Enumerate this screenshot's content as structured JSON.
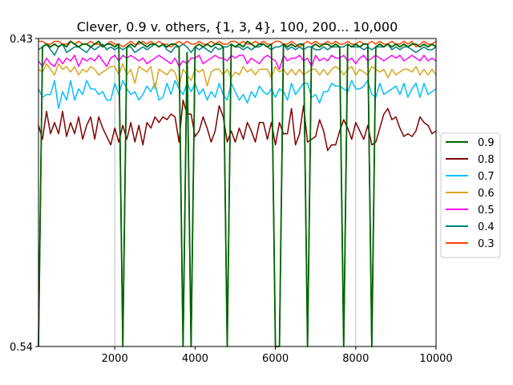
{
  "chart_data": {
    "type": "line",
    "title": "Clever, 0.9 v. others, {1, 3, 4}, 100, 200... 10,000",
    "xlabel": "",
    "ylabel": "",
    "xlim": [
      100,
      10000
    ],
    "ylim": [
      0.54,
      0.43
    ],
    "y_inverted": true,
    "x_ticks": [
      2000,
      4000,
      6000,
      8000,
      10000
    ],
    "x_tick_labels": [
      "2000",
      "4000",
      "6000",
      "8000",
      "10000"
    ],
    "y_tick_labels": [
      "0.43",
      "0.54"
    ],
    "x_gridlines": [
      2000,
      8000
    ],
    "legend_placement": "right-outside",
    "x": [
      100,
      200,
      300,
      400,
      500,
      600,
      700,
      800,
      900,
      1000,
      1100,
      1200,
      1300,
      1400,
      1500,
      1600,
      1700,
      1800,
      1900,
      2000,
      2100,
      2200,
      2300,
      2400,
      2500,
      2600,
      2700,
      2800,
      2900,
      3000,
      3100,
      3200,
      3300,
      3400,
      3500,
      3600,
      3700,
      3800,
      3900,
      4000,
      4100,
      4200,
      4300,
      4400,
      4500,
      4600,
      4700,
      4800,
      4900,
      5000,
      5100,
      5200,
      5300,
      5400,
      5500,
      5600,
      5700,
      5800,
      5900,
      6000,
      6100,
      6200,
      6300,
      6400,
      6500,
      6600,
      6700,
      6800,
      6900,
      7000,
      7100,
      7200,
      7300,
      7400,
      7500,
      7600,
      7700,
      7800,
      7900,
      8000,
      8100,
      8200,
      8300,
      8400,
      8500,
      8600,
      8700,
      8800,
      8900,
      9000,
      9100,
      9200,
      9300,
      9400,
      9500,
      9600,
      9700,
      9800,
      9900,
      10000
    ],
    "series": [
      {
        "name": "0.9",
        "color": "#006400",
        "values": [
          0.54,
          0.433,
          0.432,
          0.433,
          0.432,
          0.433,
          0.432,
          0.433,
          0.431,
          0.432,
          0.433,
          0.432,
          0.432,
          0.433,
          0.432,
          0.431,
          0.433,
          0.432,
          0.432,
          0.433,
          0.432,
          0.54,
          0.433,
          0.432,
          0.433,
          0.431,
          0.432,
          0.433,
          0.432,
          0.432,
          0.433,
          0.432,
          0.433,
          0.432,
          0.432,
          0.433,
          0.54,
          0.435,
          0.54,
          0.433,
          0.432,
          0.433,
          0.432,
          0.433,
          0.432,
          0.432,
          0.433,
          0.54,
          0.432,
          0.433,
          0.432,
          0.433,
          0.431,
          0.432,
          0.433,
          0.432,
          0.432,
          0.433,
          0.432,
          0.54,
          0.54,
          0.432,
          0.433,
          0.432,
          0.433,
          0.432,
          0.432,
          0.54,
          0.433,
          0.432,
          0.433,
          0.432,
          0.432,
          0.433,
          0.432,
          0.433,
          0.54,
          0.432,
          0.433,
          0.432,
          0.433,
          0.432,
          0.432,
          0.54,
          0.433,
          0.432,
          0.433,
          0.432,
          0.433,
          0.432,
          0.433,
          0.432,
          0.433,
          0.432,
          0.432,
          0.433,
          0.432,
          0.433,
          0.432,
          0.433
        ]
      },
      {
        "name": "0.8",
        "color": "#800000",
        "values": [
          0.461,
          0.466,
          0.456,
          0.464,
          0.46,
          0.464,
          0.456,
          0.465,
          0.46,
          0.464,
          0.458,
          0.466,
          0.461,
          0.458,
          0.466,
          0.458,
          0.462,
          0.465,
          0.468,
          0.462,
          0.467,
          0.461,
          0.466,
          0.46,
          0.467,
          0.461,
          0.468,
          0.46,
          0.462,
          0.458,
          0.46,
          0.458,
          0.459,
          0.457,
          0.458,
          0.467,
          0.452,
          0.457,
          0.457,
          0.465,
          0.463,
          0.458,
          0.462,
          0.467,
          0.463,
          0.454,
          0.458,
          0.467,
          0.463,
          0.467,
          0.462,
          0.466,
          0.46,
          0.463,
          0.467,
          0.46,
          0.46,
          0.466,
          0.46,
          0.468,
          0.46,
          0.464,
          0.464,
          0.455,
          0.468,
          0.464,
          0.454,
          0.467,
          0.466,
          0.465,
          0.459,
          0.463,
          0.47,
          0.468,
          0.468,
          0.463,
          0.459,
          0.462,
          0.466,
          0.46,
          0.463,
          0.466,
          0.461,
          0.468,
          0.467,
          0.462,
          0.457,
          0.455,
          0.459,
          0.458,
          0.462,
          0.465,
          0.464,
          0.465,
          0.463,
          0.458,
          0.46,
          0.461,
          0.464,
          0.463
        ]
      },
      {
        "name": "0.7",
        "color": "#00bfff",
        "values": [
          0.448,
          0.451,
          0.45,
          0.45,
          0.445,
          0.455,
          0.449,
          0.452,
          0.445,
          0.452,
          0.448,
          0.45,
          0.445,
          0.448,
          0.448,
          0.45,
          0.449,
          0.452,
          0.452,
          0.446,
          0.45,
          0.445,
          0.448,
          0.45,
          0.449,
          0.452,
          0.45,
          0.447,
          0.449,
          0.446,
          0.452,
          0.451,
          0.446,
          0.45,
          0.445,
          0.448,
          0.45,
          0.446,
          0.449,
          0.446,
          0.45,
          0.448,
          0.452,
          0.449,
          0.451,
          0.446,
          0.45,
          0.452,
          0.446,
          0.449,
          0.452,
          0.45,
          0.453,
          0.449,
          0.451,
          0.447,
          0.449,
          0.45,
          0.448,
          0.451,
          0.448,
          0.449,
          0.452,
          0.446,
          0.45,
          0.448,
          0.446,
          0.446,
          0.451,
          0.45,
          0.453,
          0.449,
          0.449,
          0.446,
          0.447,
          0.447,
          0.448,
          0.449,
          0.445,
          0.448,
          0.448,
          0.447,
          0.445,
          0.45,
          0.451,
          0.446,
          0.45,
          0.449,
          0.448,
          0.447,
          0.45,
          0.446,
          0.451,
          0.448,
          0.446,
          0.451,
          0.446,
          0.45,
          0.449,
          0.448
        ]
      },
      {
        "name": "0.6",
        "color": "#daa520",
        "values": [
          0.441,
          0.442,
          0.439,
          0.441,
          0.443,
          0.439,
          0.441,
          0.44,
          0.442,
          0.44,
          0.443,
          0.441,
          0.442,
          0.44,
          0.441,
          0.443,
          0.442,
          0.441,
          0.44,
          0.44,
          0.443,
          0.439,
          0.443,
          0.441,
          0.446,
          0.44,
          0.441,
          0.442,
          0.44,
          0.448,
          0.441,
          0.442,
          0.443,
          0.441,
          0.442,
          0.447,
          0.441,
          0.443,
          0.445,
          0.441,
          0.442,
          0.441,
          0.447,
          0.442,
          0.441,
          0.441,
          0.443,
          0.441,
          0.444,
          0.442,
          0.443,
          0.44,
          0.442,
          0.441,
          0.443,
          0.441,
          0.441,
          0.441,
          0.444,
          0.44,
          0.442,
          0.441,
          0.443,
          0.441,
          0.443,
          0.441,
          0.443,
          0.442,
          0.441,
          0.441,
          0.443,
          0.441,
          0.443,
          0.441,
          0.44,
          0.441,
          0.443,
          0.441,
          0.44,
          0.443,
          0.441,
          0.442,
          0.443,
          0.44,
          0.441,
          0.442,
          0.441,
          0.444,
          0.441,
          0.443,
          0.442,
          0.441,
          0.441,
          0.442,
          0.44,
          0.443,
          0.441,
          0.443,
          0.441,
          0.443
        ]
      },
      {
        "name": "0.5",
        "color": "#ff00ff",
        "values": [
          0.438,
          0.44,
          0.437,
          0.439,
          0.44,
          0.437,
          0.439,
          0.437,
          0.438,
          0.436,
          0.44,
          0.437,
          0.438,
          0.437,
          0.438,
          0.436,
          0.438,
          0.44,
          0.437,
          0.436,
          0.438,
          0.436,
          0.437,
          0.436,
          0.437,
          0.438,
          0.437,
          0.439,
          0.438,
          0.437,
          0.436,
          0.437,
          0.438,
          0.439,
          0.437,
          0.44,
          0.438,
          0.439,
          0.437,
          0.437,
          0.436,
          0.439,
          0.438,
          0.437,
          0.436,
          0.437,
          0.437,
          0.438,
          0.436,
          0.437,
          0.436,
          0.436,
          0.439,
          0.437,
          0.438,
          0.439,
          0.437,
          0.436,
          0.437,
          0.438,
          0.441,
          0.436,
          0.438,
          0.437,
          0.437,
          0.436,
          0.438,
          0.437,
          0.44,
          0.436,
          0.438,
          0.437,
          0.438,
          0.436,
          0.437,
          0.437,
          0.436,
          0.438,
          0.437,
          0.439,
          0.437,
          0.436,
          0.438,
          0.437,
          0.436,
          0.437,
          0.438,
          0.437,
          0.436,
          0.437,
          0.436,
          0.438,
          0.437,
          0.436,
          0.437,
          0.438,
          0.436,
          0.438,
          0.437,
          0.438
        ]
      },
      {
        "name": "0.4",
        "color": "#008080",
        "values": [
          0.434,
          0.433,
          0.432,
          0.434,
          0.436,
          0.433,
          0.432,
          0.435,
          0.434,
          0.433,
          0.433,
          0.434,
          0.435,
          0.433,
          0.434,
          0.433,
          0.432,
          0.434,
          0.433,
          0.434,
          0.433,
          0.434,
          0.433,
          0.433,
          0.435,
          0.434,
          0.433,
          0.434,
          0.433,
          0.432,
          0.433,
          0.432,
          0.434,
          0.435,
          0.433,
          0.433,
          0.432,
          0.433,
          0.435,
          0.433,
          0.434,
          0.433,
          0.434,
          0.435,
          0.433,
          0.434,
          0.433,
          0.433,
          0.432,
          0.433,
          0.433,
          0.434,
          0.433,
          0.434,
          0.433,
          0.433,
          0.432,
          0.433,
          0.434,
          0.433,
          0.433,
          0.432,
          0.434,
          0.433,
          0.434,
          0.433,
          0.434,
          0.433,
          0.433,
          0.434,
          0.434,
          0.433,
          0.434,
          0.433,
          0.433,
          0.433,
          0.433,
          0.432,
          0.433,
          0.433,
          0.433,
          0.434,
          0.433,
          0.434,
          0.433,
          0.433,
          0.433,
          0.432,
          0.434,
          0.433,
          0.434,
          0.433,
          0.433,
          0.434,
          0.435,
          0.434,
          0.433,
          0.434,
          0.434,
          0.433
        ]
      },
      {
        "name": "0.3",
        "color": "#ff4500",
        "values": [
          0.431,
          0.431,
          0.432,
          0.432,
          0.431,
          0.431,
          0.432,
          0.432,
          0.431,
          0.432,
          0.431,
          0.432,
          0.432,
          0.431,
          0.432,
          0.432,
          0.433,
          0.432,
          0.431,
          0.432,
          0.432,
          0.433,
          0.432,
          0.431,
          0.432,
          0.432,
          0.431,
          0.432,
          0.431,
          0.432,
          0.431,
          0.432,
          0.432,
          0.433,
          0.432,
          0.431,
          0.432,
          0.431,
          0.432,
          0.432,
          0.431,
          0.432,
          0.432,
          0.431,
          0.432,
          0.431,
          0.432,
          0.432,
          0.431,
          0.431,
          0.432,
          0.431,
          0.432,
          0.432,
          0.431,
          0.432,
          0.431,
          0.432,
          0.432,
          0.431,
          0.431,
          0.432,
          0.432,
          0.431,
          0.432,
          0.433,
          0.432,
          0.431,
          0.432,
          0.431,
          0.432,
          0.432,
          0.431,
          0.432,
          0.431,
          0.432,
          0.432,
          0.431,
          0.432,
          0.432,
          0.431,
          0.432,
          0.432,
          0.431,
          0.432,
          0.431,
          0.432,
          0.432,
          0.431,
          0.432,
          0.432,
          0.431,
          0.432,
          0.431,
          0.433,
          0.432,
          0.431,
          0.432,
          0.432,
          0.431
        ]
      }
    ]
  }
}
